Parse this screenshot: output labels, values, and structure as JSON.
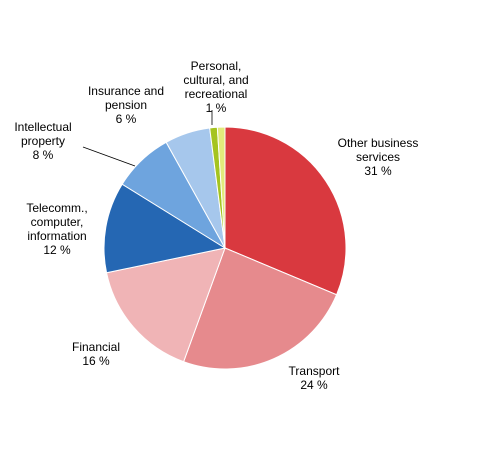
{
  "chart_data": {
    "type": "pie",
    "title": "",
    "legend": "none",
    "slices": [
      {
        "label": [
          "Other business",
          "services"
        ],
        "value": 31,
        "value_label": "31 %",
        "color": "#d9393f"
      },
      {
        "label": [
          "Transport"
        ],
        "value": 24,
        "value_label": "24 %",
        "color": "#e68a8d"
      },
      {
        "label": [
          "Financial"
        ],
        "value": 16,
        "value_label": "16 %",
        "color": "#f0b4b6"
      },
      {
        "label": [
          "Telecomm.,",
          "computer,",
          "information"
        ],
        "value": 12,
        "value_label": "12 %",
        "color": "#2567b3"
      },
      {
        "label": [
          "Intellectual",
          "property"
        ],
        "value": 8,
        "value_label": "8 %",
        "color": "#6ea4de"
      },
      {
        "label": [
          "Insurance and",
          "pension"
        ],
        "value": 6,
        "value_label": "6 %",
        "color": "#a6c7ec"
      },
      {
        "label": [],
        "value": 1,
        "value_label": "",
        "color": "#a5c41f"
      },
      {
        "label": [
          "Personal,",
          "cultural, and",
          "recreational"
        ],
        "value": 1,
        "value_label": "1 %",
        "color": "#e2ea7b"
      }
    ]
  }
}
